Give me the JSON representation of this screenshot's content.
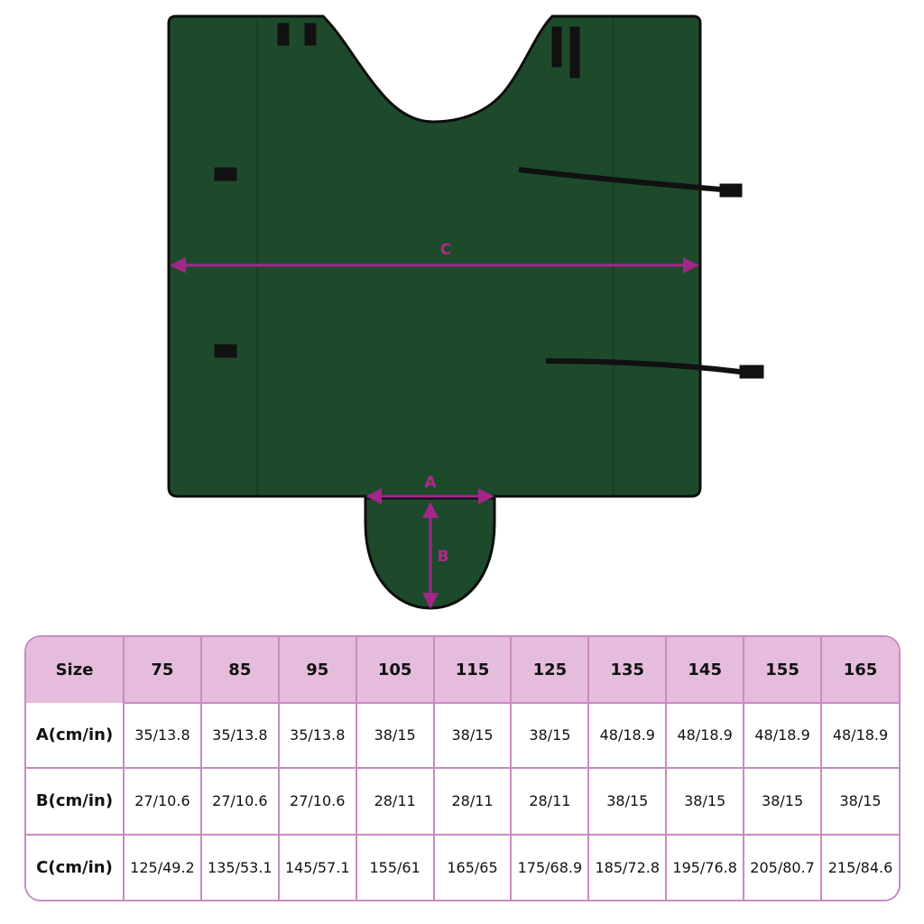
{
  "colors": {
    "fabric": "#1e4a2c",
    "edge": "#0d0d0d",
    "arrow": "#a3268a",
    "table_border": "#c98bc0",
    "table_header": "#e6bcdc"
  },
  "figure": {
    "labels": {
      "a": "A",
      "b": "B",
      "c": "C"
    }
  },
  "table": {
    "header": [
      "Size",
      "75",
      "85",
      "95",
      "105",
      "115",
      "125",
      "135",
      "145",
      "155",
      "165"
    ],
    "rows": [
      {
        "label": "A(cm/in)",
        "values": [
          "35/13.8",
          "35/13.8",
          "35/13.8",
          "38/15",
          "38/15",
          "38/15",
          "48/18.9",
          "48/18.9",
          "48/18.9",
          "48/18.9"
        ]
      },
      {
        "label": "B(cm/in)",
        "values": [
          "27/10.6",
          "27/10.6",
          "27/10.6",
          "28/11",
          "28/11",
          "28/11",
          "38/15",
          "38/15",
          "38/15",
          "38/15"
        ]
      },
      {
        "label": "C(cm/in)",
        "values": [
          "125/49.2",
          "135/53.1",
          "145/57.1",
          "155/61",
          "165/65",
          "175/68.9",
          "185/72.8",
          "195/76.8",
          "205/80.7",
          "215/84.6"
        ]
      }
    ]
  }
}
